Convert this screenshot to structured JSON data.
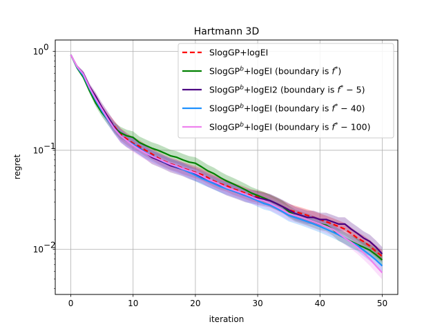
{
  "chart_data": {
    "type": "line",
    "title": "Hartmann 3D",
    "xlabel": "iteration",
    "ylabel": "regret",
    "xlim": [
      -2.5,
      52.5
    ],
    "ylim": [
      0.0035,
      1.3
    ],
    "yscale": "log",
    "grid": true,
    "legend_position": "top-right",
    "x_ticks": [
      0,
      10,
      20,
      30,
      40,
      50
    ],
    "x_tick_labels": [
      "0",
      "10",
      "20",
      "30",
      "40",
      "50"
    ],
    "y_ticks": [
      0.01,
      0.1,
      1
    ],
    "y_tick_labels": [
      "10",
      "10",
      "10"
    ],
    "y_tick_exponents": [
      "−2",
      "−1",
      "0"
    ],
    "x": [
      0,
      1,
      2,
      3,
      4,
      5,
      6,
      7,
      8,
      9,
      10,
      11,
      12,
      13,
      14,
      15,
      16,
      17,
      18,
      19,
      20,
      21,
      22,
      23,
      24,
      25,
      26,
      27,
      28,
      29,
      30,
      31,
      32,
      33,
      34,
      35,
      36,
      37,
      38,
      39,
      40,
      41,
      42,
      43,
      44,
      45,
      46,
      47,
      48,
      49,
      50
    ],
    "series": [
      {
        "name_parts": [
          "SlogGP+logEI"
        ],
        "color": "#ff0000",
        "dashed": true,
        "band_width": 0.13,
        "values": [
          0.92,
          0.7,
          0.58,
          0.43,
          0.34,
          0.26,
          0.21,
          0.175,
          0.145,
          0.13,
          0.118,
          0.11,
          0.1,
          0.092,
          0.084,
          0.078,
          0.073,
          0.07,
          0.066,
          0.063,
          0.06,
          0.057,
          0.053,
          0.049,
          0.046,
          0.044,
          0.041,
          0.039,
          0.037,
          0.035,
          0.034,
          0.033,
          0.031,
          0.029,
          0.027,
          0.025,
          0.024,
          0.023,
          0.022,
          0.021,
          0.02,
          0.019,
          0.018,
          0.017,
          0.016,
          0.0145,
          0.013,
          0.012,
          0.0108,
          0.0095,
          0.0085
        ]
      },
      {
        "name_parts": [
          "SlogGP",
          "b",
          "+logEI (boundary is ",
          "f",
          "*",
          ")"
        ],
        "color": "#008000",
        "dashed": false,
        "band_width": 0.13,
        "values": [
          0.92,
          0.68,
          0.55,
          0.4,
          0.3,
          0.24,
          0.2,
          0.168,
          0.15,
          0.14,
          0.135,
          0.12,
          0.112,
          0.105,
          0.1,
          0.094,
          0.088,
          0.085,
          0.08,
          0.076,
          0.074,
          0.068,
          0.062,
          0.058,
          0.053,
          0.049,
          0.046,
          0.043,
          0.04,
          0.037,
          0.035,
          0.033,
          0.031,
          0.029,
          0.027,
          0.024,
          0.022,
          0.021,
          0.02,
          0.019,
          0.018,
          0.0175,
          0.016,
          0.014,
          0.013,
          0.012,
          0.0112,
          0.0105,
          0.0098,
          0.0088,
          0.0078
        ]
      },
      {
        "name_parts": [
          "SlogGP",
          "b",
          "+logEI2 (boundary is ",
          "f",
          "*",
          " − 5)"
        ],
        "color": "#4b0082",
        "dashed": false,
        "band_width": 0.15,
        "values": [
          0.92,
          0.7,
          0.6,
          0.44,
          0.35,
          0.27,
          0.215,
          0.17,
          0.14,
          0.125,
          0.115,
          0.105,
          0.095,
          0.085,
          0.08,
          0.075,
          0.07,
          0.067,
          0.064,
          0.06,
          0.057,
          0.054,
          0.05,
          0.047,
          0.044,
          0.041,
          0.039,
          0.037,
          0.035,
          0.034,
          0.033,
          0.032,
          0.031,
          0.029,
          0.027,
          0.025,
          0.023,
          0.022,
          0.021,
          0.021,
          0.02,
          0.02,
          0.019,
          0.018,
          0.018,
          0.016,
          0.0145,
          0.013,
          0.012,
          0.0105,
          0.009
        ]
      },
      {
        "name_parts": [
          "SlogGP",
          "b",
          "+logEI (boundary is ",
          "f",
          "*",
          " − 40)"
        ],
        "color": "#1e90ff",
        "dashed": false,
        "band_width": 0.13,
        "values": [
          0.92,
          0.69,
          0.57,
          0.42,
          0.32,
          0.25,
          0.2,
          0.165,
          0.14,
          0.125,
          0.115,
          0.104,
          0.095,
          0.088,
          0.082,
          0.076,
          0.072,
          0.068,
          0.064,
          0.06,
          0.056,
          0.052,
          0.049,
          0.046,
          0.043,
          0.041,
          0.039,
          0.037,
          0.035,
          0.033,
          0.031,
          0.029,
          0.028,
          0.026,
          0.024,
          0.022,
          0.021,
          0.02,
          0.019,
          0.018,
          0.017,
          0.016,
          0.015,
          0.014,
          0.013,
          0.0118,
          0.011,
          0.0098,
          0.0088,
          0.0078,
          0.0068
        ]
      },
      {
        "name_parts": [
          "SlogGP",
          "b",
          "+logEI (boundary is ",
          "f",
          "*",
          " − 100)"
        ],
        "color": "#ee82ee",
        "dashed": false,
        "band_width": 0.15,
        "values": [
          0.92,
          0.7,
          0.59,
          0.43,
          0.33,
          0.26,
          0.205,
          0.165,
          0.14,
          0.125,
          0.112,
          0.102,
          0.094,
          0.087,
          0.082,
          0.077,
          0.072,
          0.069,
          0.065,
          0.062,
          0.059,
          0.055,
          0.051,
          0.048,
          0.045,
          0.042,
          0.04,
          0.038,
          0.036,
          0.034,
          0.032,
          0.031,
          0.029,
          0.027,
          0.025,
          0.023,
          0.022,
          0.021,
          0.02,
          0.019,
          0.018,
          0.017,
          0.016,
          0.0145,
          0.013,
          0.0118,
          0.0105,
          0.0092,
          0.008,
          0.0068,
          0.0058
        ]
      }
    ]
  }
}
